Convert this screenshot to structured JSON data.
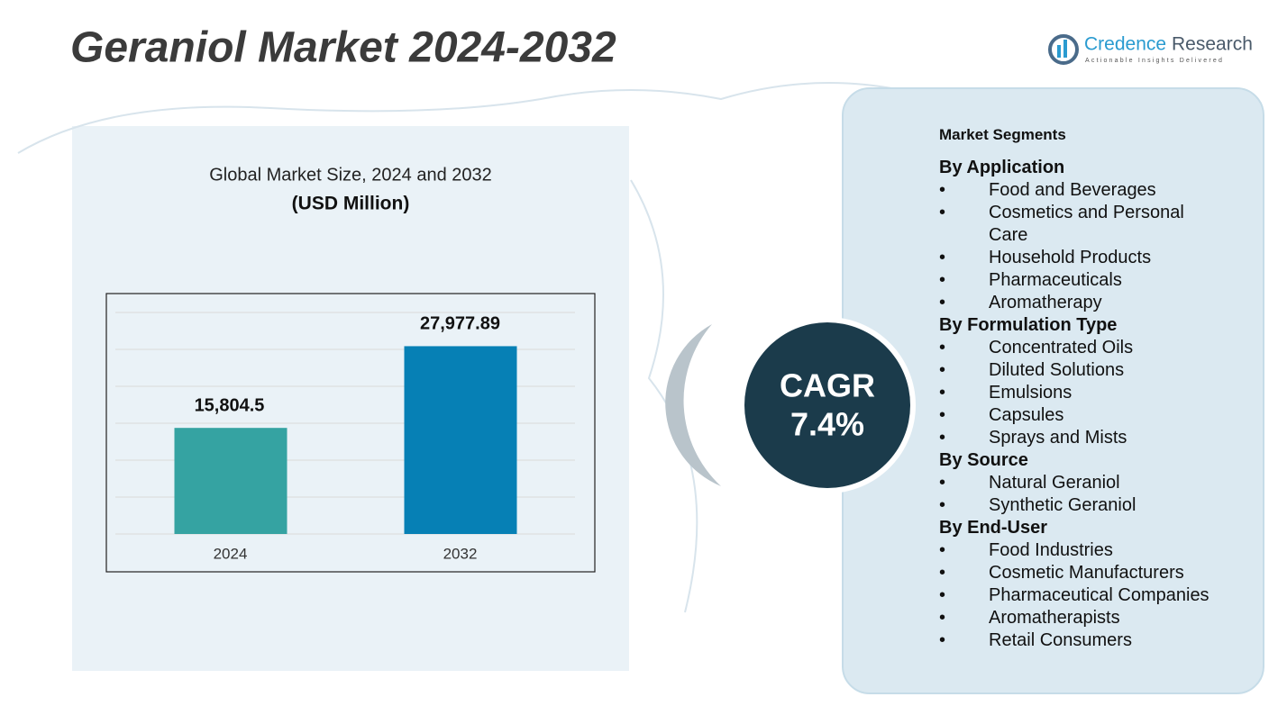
{
  "header": {
    "title": "Geraniol Market  2024-2032",
    "logo_name_1": "Credence",
    "logo_name_2": "Research",
    "logo_tagline": "Actionable Insights Delivered"
  },
  "chart_data": {
    "type": "bar",
    "title": "Global Market Size, 2024 and 2032",
    "subtitle": "(USD Million)",
    "categories": [
      "2024",
      "2032"
    ],
    "values": [
      15804.5,
      27977.89
    ],
    "value_labels": [
      "15,804.5",
      "27,977.89"
    ],
    "colors": [
      "#35a3a2",
      "#0680b5"
    ],
    "ylim": [
      0,
      33000
    ],
    "grid": true
  },
  "cagr": {
    "label": "CAGR",
    "value": "7.4%"
  },
  "segments": {
    "title": "Market Segments",
    "groups": [
      {
        "name": "By Application",
        "items": [
          "Food and Beverages",
          "Cosmetics and Personal Care",
          "Household Products",
          "Pharmaceuticals",
          "Aromatherapy"
        ]
      },
      {
        "name": "By Formulation Type",
        "items": [
          "Concentrated Oils",
          "Diluted Solutions",
          "Emulsions",
          "Capsules",
          "Sprays and Mists"
        ]
      },
      {
        "name": "By Source",
        "items": [
          "Natural Geraniol",
          "Synthetic Geraniol"
        ]
      },
      {
        "name": "By End-User",
        "items": [
          "Food Industries",
          "Cosmetic Manufacturers",
          "Pharmaceutical Companies",
          "Aromatherapists",
          "Retail Consumers"
        ]
      }
    ]
  }
}
